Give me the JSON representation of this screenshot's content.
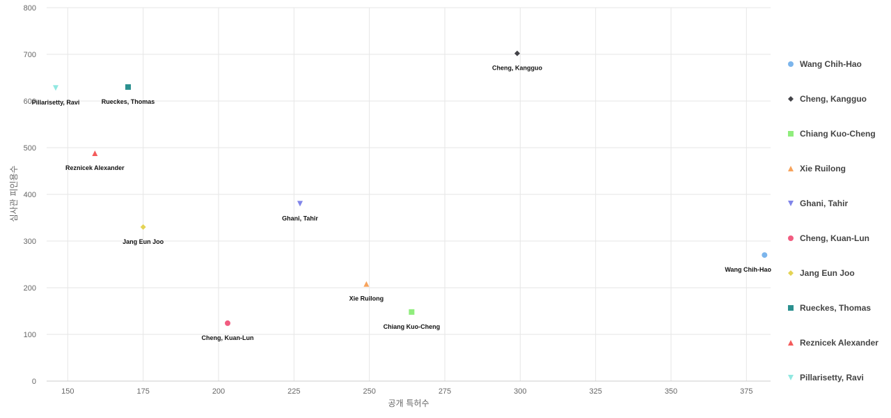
{
  "chart_data": {
    "type": "scatter",
    "xlabel": "공개 특허수",
    "ylabel": "심사관 피인용수",
    "xlim": [
      143,
      383
    ],
    "ylim": [
      0,
      800
    ],
    "xticks": [
      150,
      175,
      200,
      225,
      250,
      275,
      300,
      325,
      350,
      375
    ],
    "yticks": [
      0,
      100,
      200,
      300,
      400,
      500,
      600,
      700,
      800
    ],
    "grid": true,
    "legend_position": "right",
    "series": [
      {
        "name": "Wang Chih-Hao",
        "x": 381,
        "y": 270,
        "color": "#7cb5ec",
        "marker": "circle"
      },
      {
        "name": "Cheng, Kangguo",
        "x": 299,
        "y": 702,
        "color": "#434348",
        "marker": "diamond"
      },
      {
        "name": "Chiang Kuo-Cheng",
        "x": 264,
        "y": 148,
        "color": "#90ed7d",
        "marker": "square"
      },
      {
        "name": "Xie Ruilong",
        "x": 249,
        "y": 208,
        "color": "#f7a35c",
        "marker": "triangle"
      },
      {
        "name": "Ghani, Tahir",
        "x": 227,
        "y": 380,
        "color": "#8085e9",
        "marker": "triangle-down"
      },
      {
        "name": "Cheng, Kuan-Lun",
        "x": 203,
        "y": 124,
        "color": "#f15c80",
        "marker": "circle"
      },
      {
        "name": "Jang Eun Joo",
        "x": 175,
        "y": 330,
        "color": "#e4d354",
        "marker": "diamond"
      },
      {
        "name": "Rueckes, Thomas",
        "x": 170,
        "y": 630,
        "color": "#2b908f",
        "marker": "square"
      },
      {
        "name": "Reznicek Alexander",
        "x": 159,
        "y": 488,
        "color": "#f45b5b",
        "marker": "triangle"
      },
      {
        "name": "Pillarisetty, Ravi",
        "x": 146,
        "y": 628,
        "color": "#91e8e1",
        "marker": "triangle-down"
      }
    ]
  }
}
